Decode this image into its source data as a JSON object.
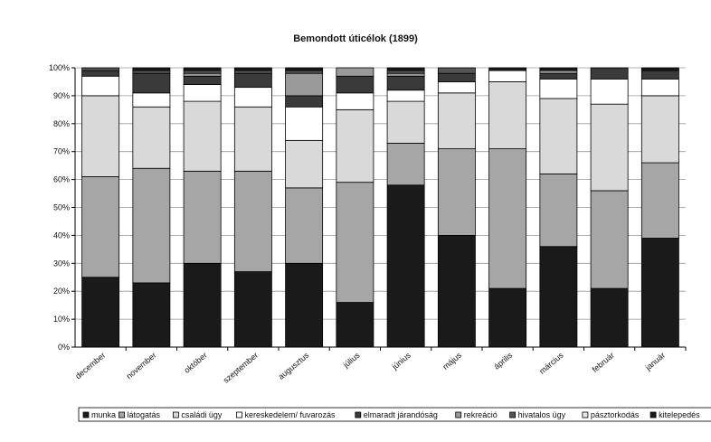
{
  "chart_data": {
    "type": "bar",
    "stacked": true,
    "normalized": true,
    "title": "Bemondott úticélok (1899)",
    "xlabel": "",
    "ylabel": "",
    "ylim": [
      0,
      100
    ],
    "yticks": [
      "0%",
      "10%",
      "20%",
      "30%",
      "40%",
      "50%",
      "60%",
      "70%",
      "80%",
      "90%",
      "100%"
    ],
    "grid": true,
    "legend_position": "bottom",
    "categories": [
      "december",
      "november",
      "október",
      "szeptember",
      "augusztus",
      "július",
      "június",
      "május",
      "április",
      "március",
      "február",
      "január"
    ],
    "series": [
      {
        "name": "munka",
        "color": "#1a1a1a",
        "values": [
          25,
          23,
          30,
          27,
          30,
          16,
          58,
          40,
          21,
          36,
          21,
          39
        ]
      },
      {
        "name": "látogatás",
        "color": "#a6a6a6",
        "values": [
          36,
          41,
          33,
          36,
          27,
          43,
          15,
          31,
          50,
          26,
          35,
          27
        ]
      },
      {
        "name": "családi ügy",
        "color": "#d9d9d9",
        "values": [
          29,
          22,
          25,
          23,
          17,
          26,
          15,
          20,
          24,
          27,
          31,
          24
        ]
      },
      {
        "name": "kereskedelem/ fuvarozás",
        "color": "#ffffff",
        "values": [
          7,
          5,
          6,
          7,
          12,
          6,
          4,
          4,
          4,
          7,
          9,
          6
        ]
      },
      {
        "name": "elmaradt járandóság",
        "color": "#3a3a3a",
        "values": [
          2,
          7,
          3,
          5,
          4,
          6,
          5,
          3,
          0,
          2,
          4,
          3
        ]
      },
      {
        "name": "rekreáció",
        "color": "#9a9a9a",
        "values": [
          0,
          0,
          1,
          0,
          8,
          3,
          1,
          0,
          0,
          1,
          0,
          0
        ]
      },
      {
        "name": "hivatalos ügy",
        "color": "#555555",
        "values": [
          1,
          1,
          1,
          1,
          1,
          0,
          1,
          2,
          0,
          0,
          0,
          0
        ]
      },
      {
        "name": "pásztorkodás",
        "color": "#e8e8e8",
        "values": [
          0,
          0,
          0,
          0,
          0,
          0,
          0,
          0,
          0,
          0,
          0,
          0
        ]
      },
      {
        "name": "kitelepedés",
        "color": "#1a1a1a",
        "values": [
          0,
          1,
          1,
          1,
          1,
          0,
          1,
          0,
          1,
          1,
          0,
          1
        ]
      }
    ]
  }
}
